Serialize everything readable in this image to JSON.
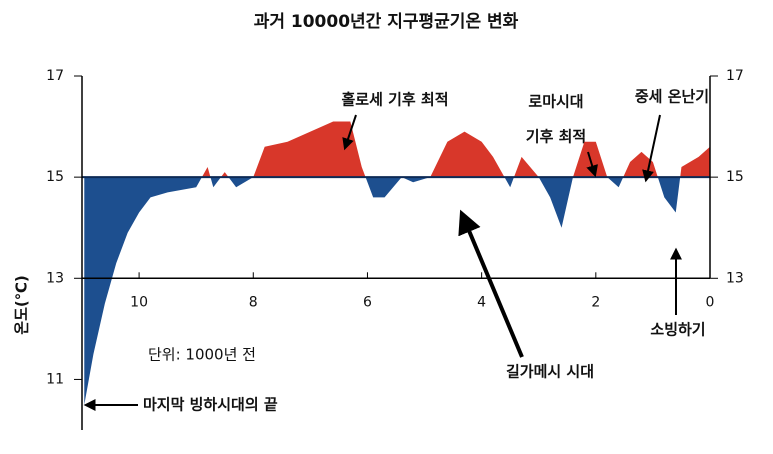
{
  "chart_data": {
    "type": "area",
    "title": "과거 10000년간 지구평균기온 변화",
    "y_label": "온도(℃)",
    "unit_note": "단위: 1000년 전",
    "x": [
      10.96,
      10.8,
      10.6,
      10.4,
      10.2,
      10.0,
      9.8,
      9.5,
      9.0,
      8.8,
      8.7,
      8.5,
      8.3,
      8.0,
      7.8,
      7.4,
      7.0,
      6.6,
      6.3,
      6.1,
      5.9,
      5.7,
      5.4,
      5.2,
      4.9,
      4.6,
      4.3,
      4.0,
      3.8,
      3.5,
      3.3,
      3.0,
      2.8,
      2.6,
      2.4,
      2.2,
      2.0,
      1.8,
      1.6,
      1.4,
      1.2,
      1.0,
      0.8,
      0.6,
      0.5,
      0.2,
      0.0
    ],
    "values": [
      10.5,
      11.5,
      12.5,
      13.3,
      13.9,
      14.3,
      14.6,
      14.7,
      14.8,
      15.2,
      14.8,
      15.1,
      14.8,
      15.0,
      15.6,
      15.7,
      15.9,
      16.1,
      16.1,
      15.2,
      14.6,
      14.6,
      15.0,
      14.9,
      15.0,
      15.7,
      15.9,
      15.7,
      15.4,
      14.8,
      15.4,
      15.0,
      14.6,
      14.0,
      15.0,
      15.7,
      15.7,
      15.0,
      14.8,
      15.3,
      15.5,
      15.3,
      14.6,
      14.3,
      15.2,
      15.4,
      15.6
    ],
    "reference_line": 15,
    "color_above": "#d8372a",
    "color_below": "#1d4f8f",
    "xlim": [
      11,
      0
    ],
    "xticks": [
      10,
      8,
      6,
      4,
      2,
      0
    ],
    "ylim": [
      10,
      17
    ],
    "yticks": [
      11,
      13,
      15,
      17
    ],
    "y2lim": [
      10,
      17
    ],
    "y2ticks": [
      13,
      15,
      17
    ],
    "annotations": [
      "홀로세 기후 최적",
      "로마시대",
      "기후 최적",
      "중세 온난기",
      "길가메시 시대",
      "소빙하기",
      "마지막 빙하시대의 끝"
    ]
  }
}
